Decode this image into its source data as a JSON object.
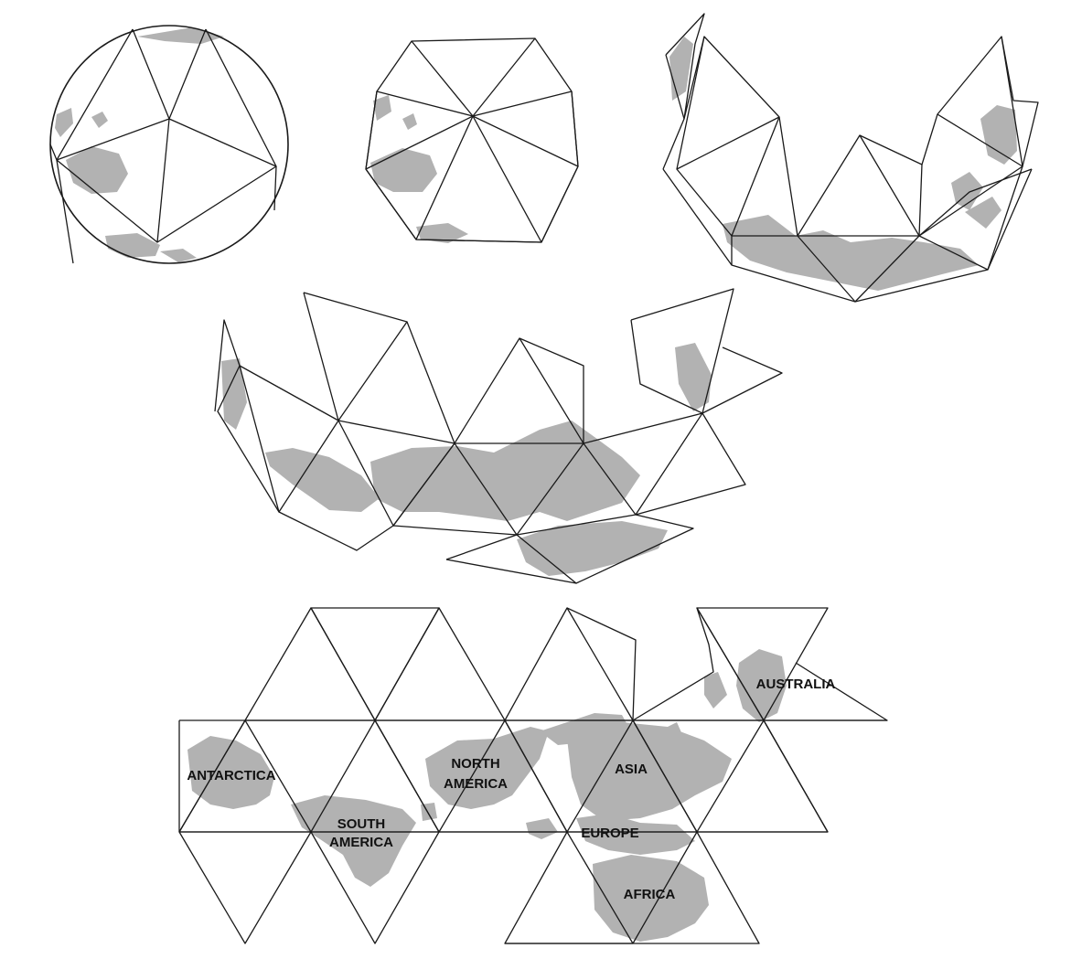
{
  "colors": {
    "land": "#b2b2b2",
    "line": "#1a1a1a",
    "background": "#ffffff"
  },
  "stages": [
    "sphere",
    "icosahedron",
    "partially-unfolded-deep",
    "partially-unfolded-shallow",
    "flat-net"
  ],
  "labels": {
    "antarctica": "ANTARCTICA",
    "south_america_1": "SOUTH",
    "south_america_2": "AMERICA",
    "north_america_1": "NORTH",
    "north_america_2": "AMERICA",
    "asia": "ASIA",
    "europe": "EUROPE",
    "africa": "AFRICA",
    "australia": "AUSTRALIA"
  }
}
